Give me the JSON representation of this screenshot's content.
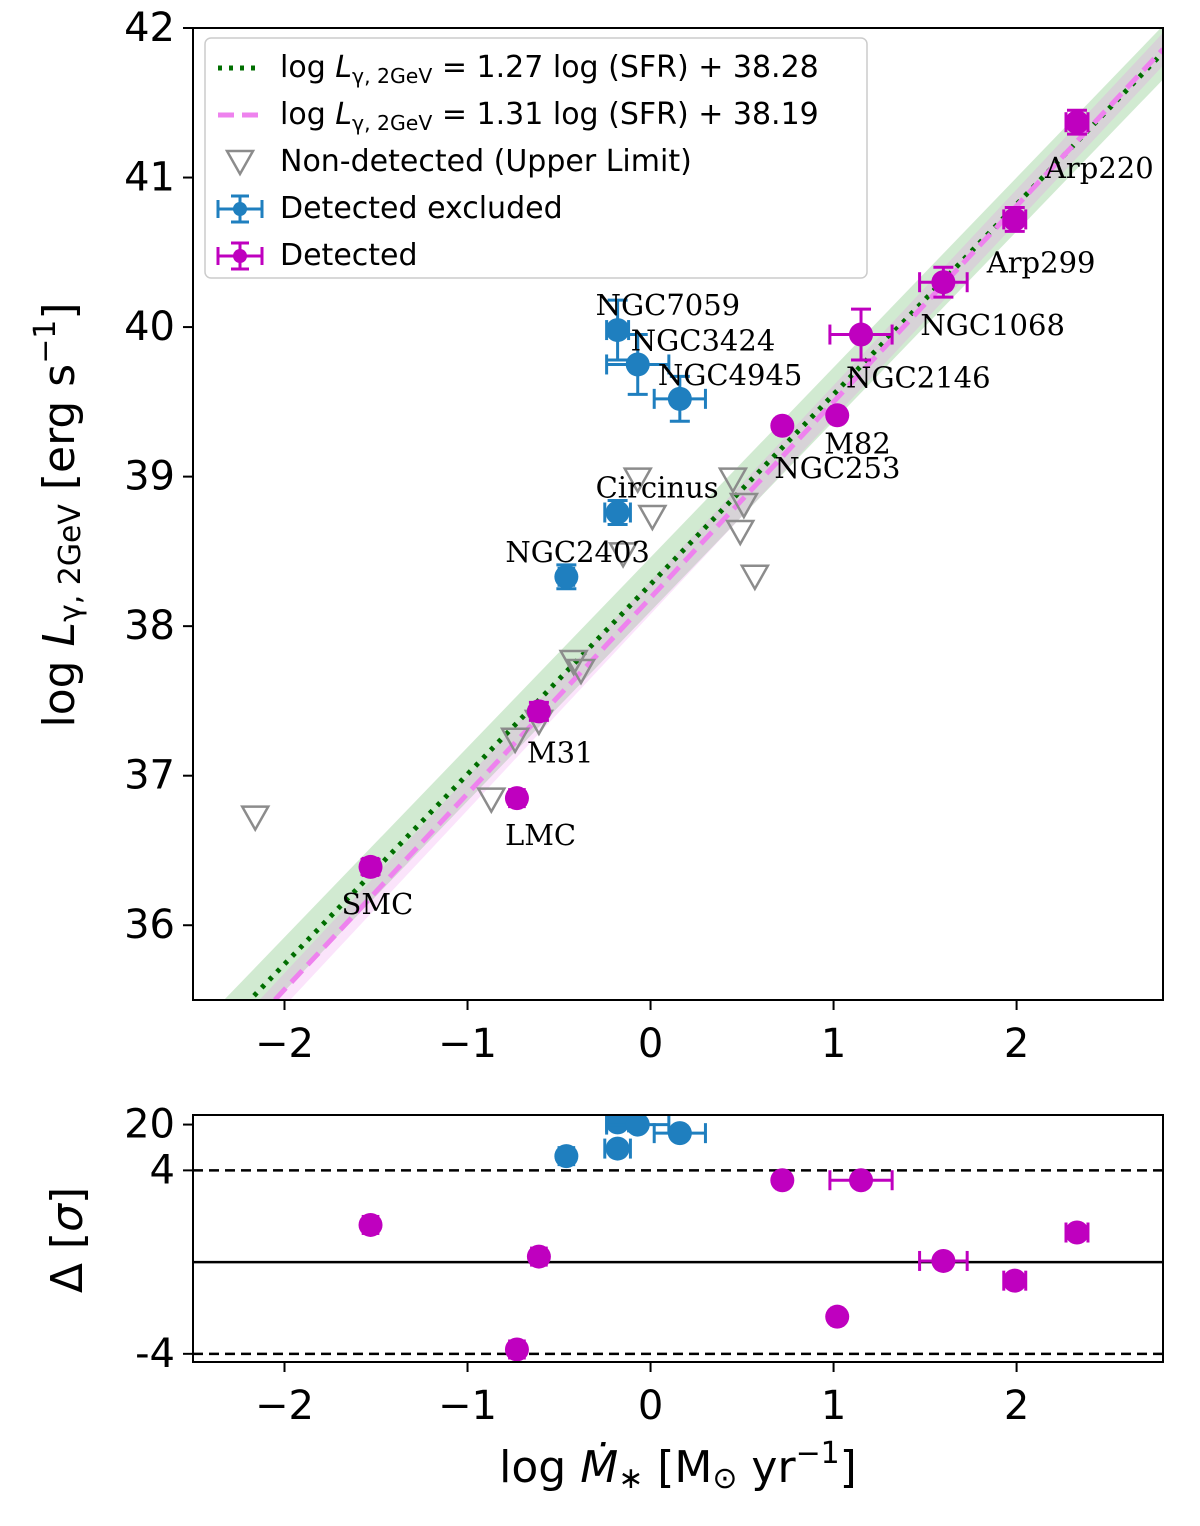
{
  "chart_data": [
    {
      "type": "scatter",
      "ylabel": [
        {
          "text": "log ",
          "style": "normal"
        },
        {
          "text": "L",
          "style": "italic"
        },
        {
          "text": "γ, 2GeV",
          "style": "sub"
        },
        {
          "text": " [erg s",
          "style": "normal"
        },
        {
          "text": "−1",
          "style": "sup"
        },
        {
          "text": "]",
          "style": "normal"
        }
      ],
      "xlim": [
        -2.5,
        2.8
      ],
      "ylim": [
        35.5,
        42
      ],
      "xticks": [
        {
          "value": -2,
          "label": "−2"
        },
        {
          "value": -1,
          "label": "−1"
        },
        0,
        1,
        2
      ],
      "yticks": [
        36,
        37,
        38,
        39,
        40,
        41,
        42
      ],
      "legend": "upper left",
      "series": [
        {
          "kind": "fit",
          "name": [
            {
              "text": "log ",
              "style": "normal"
            },
            {
              "text": "L",
              "style": "italic"
            },
            {
              "text": "γ, 2GeV",
              "style": "sub"
            },
            {
              "text": " = 1.27 log (SFR) + 38.28",
              "style": "normal"
            }
          ],
          "slope": 1.27,
          "intercept": 38.28,
          "color": "#006e00",
          "linestyle": "dotted",
          "band_color": "#2ca02c",
          "band": 0.18
        },
        {
          "kind": "fit",
          "name": [
            {
              "text": "log ",
              "style": "normal"
            },
            {
              "text": "L",
              "style": "italic"
            },
            {
              "text": "γ, 2GeV",
              "style": "sub"
            },
            {
              "text": " = 1.31 log (SFR) + 38.19",
              "style": "normal"
            }
          ],
          "slope": 1.31,
          "intercept": 38.19,
          "color": "#ee82ee",
          "linestyle": "dashed",
          "band_color": "#ee82ee",
          "band": 0.11
        },
        {
          "kind": "upper_limit",
          "name": [
            {
              "text": "Non-detected (Upper Limit)",
              "style": "normal"
            }
          ],
          "color": "#8c8c8c",
          "x": [
            -2.16,
            -0.87,
            -0.74,
            -0.61,
            -0.42,
            -0.38,
            -0.07,
            0.01,
            -0.15,
            0.45,
            0.51,
            0.49,
            0.57
          ],
          "values": [
            36.72,
            36.84,
            37.24,
            37.36,
            37.76,
            37.7,
            38.98,
            38.73,
            38.48,
            38.98,
            38.81,
            38.63,
            38.33
          ]
        },
        {
          "kind": "detected",
          "name": [
            {
              "text": "Detected excluded",
              "style": "normal"
            }
          ],
          "color": "#1f7fbf",
          "labels": [
            "NGC7059",
            "NGC3424",
            "NGC4945",
            "Circinus",
            "NGC2403"
          ],
          "x": [
            -0.18,
            -0.07,
            0.16,
            -0.18,
            -0.46
          ],
          "xerr": [
            0.06,
            0.17,
            0.14,
            0.07,
            0.04
          ],
          "values": [
            39.98,
            39.75,
            39.52,
            38.76,
            38.33
          ],
          "yerr": [
            0.2,
            0.2,
            0.15,
            0.08,
            0.08
          ]
        },
        {
          "kind": "detected",
          "name": [
            {
              "text": "Detected",
              "style": "normal"
            }
          ],
          "color": "#bf00bf",
          "labels": [
            "SMC",
            "LMC",
            "M31",
            "NGC253",
            "M82",
            "NGC2146",
            "NGC1068",
            "Arp299",
            "Arp220"
          ],
          "x": [
            -1.53,
            -0.73,
            -0.61,
            0.72,
            1.02,
            1.15,
            1.6,
            1.99,
            2.33
          ],
          "xerr": [
            0.04,
            0.04,
            0.04,
            0.03,
            0.03,
            0.17,
            0.13,
            0.06,
            0.06
          ],
          "values": [
            36.39,
            36.85,
            37.43,
            39.34,
            39.41,
            39.95,
            40.3,
            40.72,
            41.37
          ],
          "yerr": [
            0.05,
            0.04,
            0.06,
            0.03,
            0.03,
            0.17,
            0.1,
            0.08,
            0.08
          ]
        }
      ]
    },
    {
      "type": "scatter",
      "xlabel": [
        {
          "text": "log ",
          "style": "normal"
        },
        {
          "text": "Ṁ",
          "style": "italic"
        },
        {
          "text": "∗",
          "style": "sub"
        },
        {
          "text": " [M",
          "style": "normal"
        },
        {
          "text": "⊙",
          "style": "sub"
        },
        {
          "text": " yr",
          "style": "normal"
        },
        {
          "text": "−1",
          "style": "sup"
        },
        {
          "text": "]",
          "style": "normal"
        }
      ],
      "ylabel": [
        {
          "text": "Δ [",
          "style": "normal"
        },
        {
          "text": "σ",
          "style": "italic"
        },
        {
          "text": "]",
          "style": "normal"
        }
      ],
      "xlim": [
        -2.5,
        2.8
      ],
      "ylim": [
        -5.33,
        28
      ],
      "xticks": [
        {
          "value": -2,
          "label": "−2"
        },
        {
          "value": -1,
          "label": "−1"
        },
        0,
        1,
        2
      ],
      "yscale": "symlog",
      "linthresh": 4,
      "linscale": 1.4,
      "yticks": [
        -4,
        4,
        20
      ],
      "hlines": [
        {
          "value": 0,
          "linestyle": "solid"
        },
        {
          "value": 4,
          "linestyle": "dashed"
        },
        {
          "value": -4,
          "linestyle": "dashed"
        }
      ],
      "series": [
        {
          "color": "#1f7fbf",
          "x": [
            -0.18,
            -0.07,
            0.16,
            -0.18,
            -0.46
          ],
          "xerr": [
            0.06,
            0.17,
            0.14,
            0.07,
            0.04
          ],
          "values": [
            21.6,
            20,
            14.8,
            8.6,
            6.6
          ]
        },
        {
          "color": "#bf00bf",
          "x": [
            -1.53,
            -0.73,
            -0.61,
            0.72,
            1.02,
            1.15,
            1.6,
            1.99,
            2.33
          ],
          "xerr": [
            0.04,
            0.04,
            0.04,
            0.03,
            0.03,
            0.17,
            0.13,
            0.06,
            0.06
          ],
          "values": [
            1.62,
            -3.81,
            0.24,
            3.57,
            -2.38,
            3.57,
            0.05,
            -0.81,
            1.29
          ]
        }
      ]
    }
  ]
}
